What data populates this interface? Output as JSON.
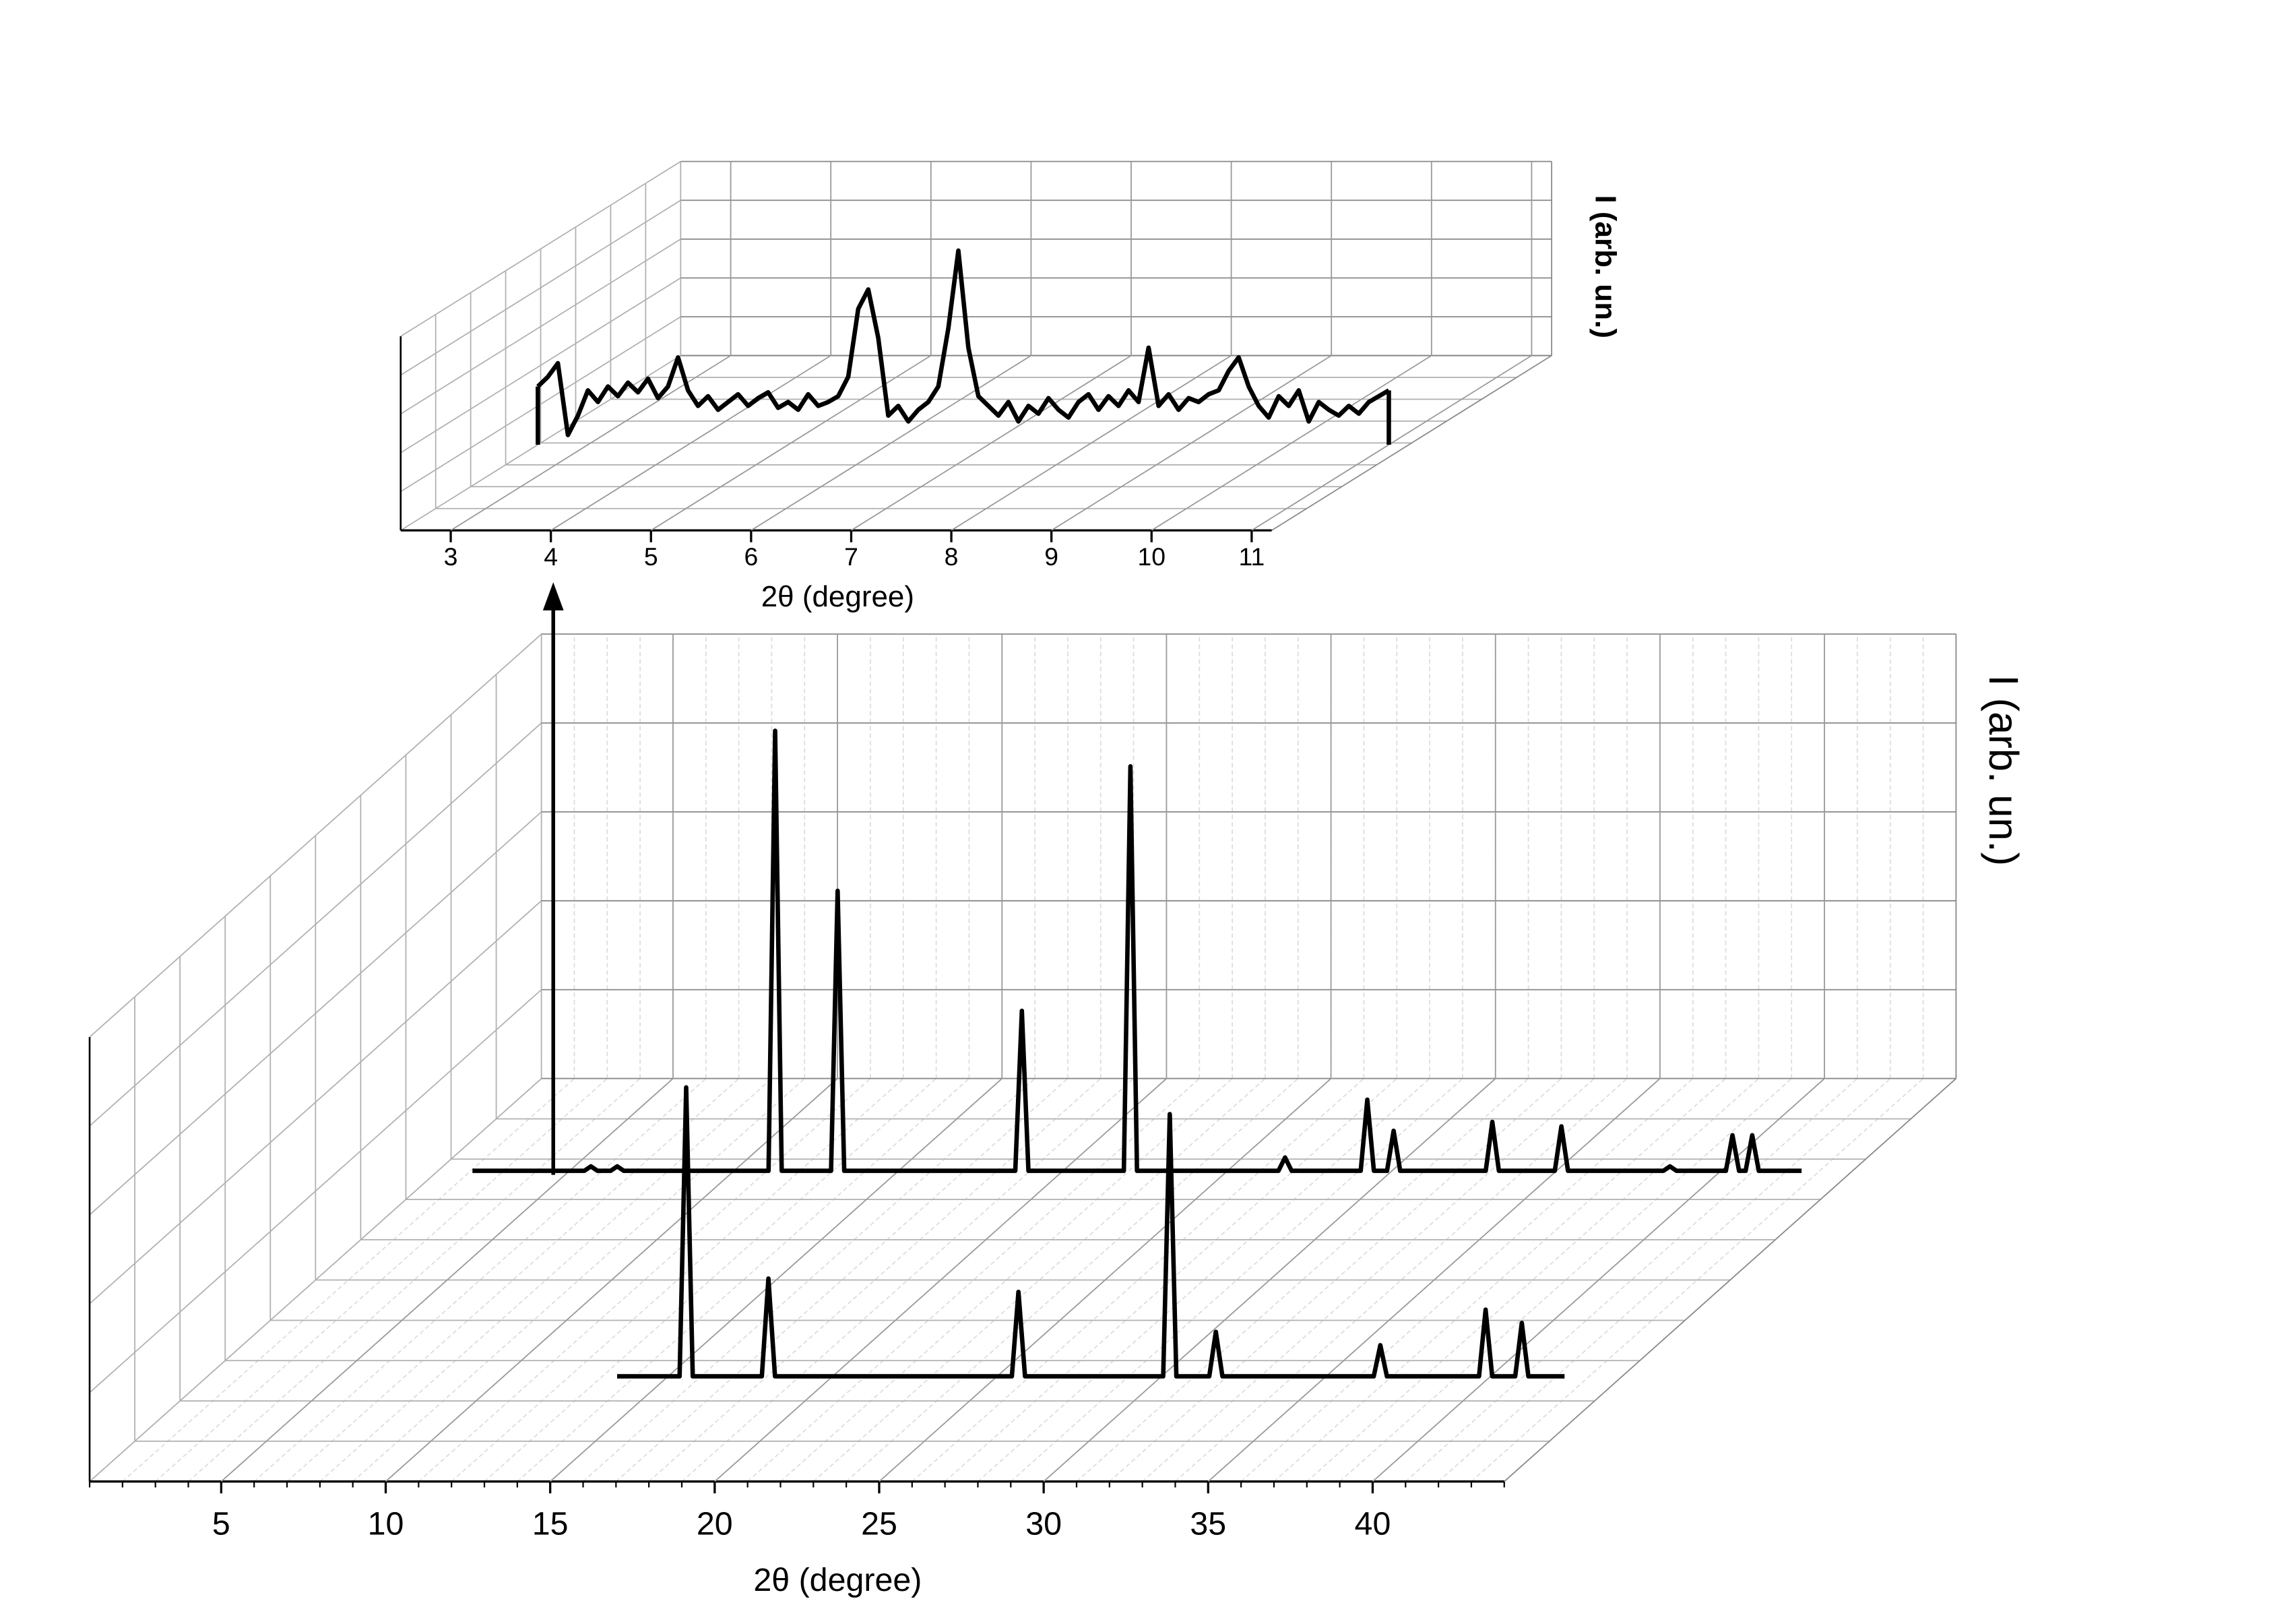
{
  "chart_data": [
    {
      "type": "waterfall",
      "xlabel": "2θ (degree)",
      "zlabel": "I (arb. un.)",
      "xlim": [
        2.5,
        11.2
      ],
      "xticks": [
        3,
        4,
        5,
        6,
        7,
        8,
        9,
        10,
        11
      ],
      "ylim": [
        0,
        100
      ],
      "series": [
        {
          "color": "#000000",
          "x": [
            2.5,
            2.6,
            2.7,
            2.8,
            2.9,
            3.0,
            3.1,
            3.2,
            3.3,
            3.4,
            3.5,
            3.6,
            3.7,
            3.8,
            3.9,
            4.0,
            4.1,
            4.2,
            4.3,
            4.4,
            4.5,
            4.6,
            4.7,
            4.8,
            4.9,
            5.0,
            5.1,
            5.2,
            5.3,
            5.4,
            5.5,
            5.6,
            5.7,
            5.8,
            5.9,
            6.0,
            6.1,
            6.2,
            6.3,
            6.4,
            6.5,
            6.6,
            6.7,
            6.8,
            6.9,
            7.0,
            7.1,
            7.2,
            7.3,
            7.4,
            7.5,
            7.6,
            7.7,
            7.8,
            7.9,
            8.0,
            8.1,
            8.2,
            8.3,
            8.4,
            8.5,
            8.6,
            8.7,
            8.8,
            8.9,
            9.0,
            9.1,
            9.2,
            9.3,
            9.4,
            9.5,
            9.6,
            9.7,
            9.8,
            9.9,
            10.0,
            10.1,
            10.2,
            10.3,
            10.4,
            10.5,
            10.6,
            10.7,
            10.8,
            10.9,
            11.0
          ],
          "values": [
            30,
            35,
            42,
            5,
            15,
            28,
            22,
            30,
            25,
            32,
            27,
            34,
            24,
            30,
            45,
            28,
            20,
            25,
            18,
            22,
            26,
            20,
            24,
            27,
            19,
            22,
            18,
            26,
            20,
            22,
            25,
            35,
            70,
            80,
            55,
            15,
            20,
            12,
            18,
            22,
            30,
            60,
            100,
            50,
            25,
            20,
            15,
            22,
            12,
            20,
            16,
            24,
            18,
            14,
            22,
            26,
            18,
            25,
            20,
            28,
            22,
            50,
            20,
            26,
            18,
            24,
            22,
            26,
            28,
            38,
            45,
            30,
            20,
            14,
            25,
            20,
            28,
            12,
            22,
            18,
            15,
            20,
            16,
            22,
            25,
            28
          ]
        }
      ]
    },
    {
      "type": "waterfall",
      "xlabel": "2θ (degree)",
      "zlabel": "I (arb. un.)",
      "xlim": [
        1,
        44
      ],
      "xticks": [
        5,
        10,
        15,
        20,
        25,
        30,
        35,
        40
      ],
      "ylim": [
        0,
        100
      ],
      "series": [
        {
          "color": "#000000",
          "x": [
            2.2,
            5.6,
            5.8,
            6.0,
            6.4,
            6.6,
            6.8,
            11.2,
            11.4,
            11.6,
            13.1,
            13.3,
            13.5,
            18.7,
            18.9,
            19.1,
            22.0,
            22.2,
            22.4,
            26.7,
            26.9,
            27.1,
            29.2,
            29.4,
            29.6,
            30.0,
            30.2,
            30.4,
            33.0,
            33.2,
            33.4,
            35.1,
            35.3,
            35.5,
            38.4,
            38.6,
            38.8,
            40.3,
            40.5,
            40.7,
            40.9,
            41.1,
            41.3,
            42.6
          ],
          "values": [
            1,
            1,
            2,
            1,
            1,
            2,
            1,
            1,
            100,
            1,
            1,
            64,
            1,
            1,
            37,
            1,
            1,
            92,
            1,
            1,
            4,
            1,
            1,
            17,
            1,
            1,
            10,
            1,
            1,
            12,
            1,
            1,
            11,
            1,
            1,
            2,
            1,
            1,
            9,
            1,
            1,
            9,
            1,
            1
          ]
        },
        {
          "color": "#000000",
          "x": [
            13.6,
            15.5,
            15.7,
            15.9,
            18.0,
            18.2,
            18.4,
            25.6,
            25.8,
            26.0,
            30.2,
            30.4,
            30.6,
            31.6,
            31.8,
            32.0,
            36.6,
            36.8,
            37.0,
            39.8,
            40.0,
            40.2,
            40.9,
            41.1,
            41.3,
            42.4
          ],
          "values": [
            1,
            1,
            66,
            1,
            1,
            23,
            1,
            1,
            20,
            1,
            1,
            60,
            1,
            1,
            11,
            1,
            1,
            8,
            1,
            1,
            16,
            1,
            1,
            13,
            1,
            1
          ]
        }
      ]
    }
  ]
}
